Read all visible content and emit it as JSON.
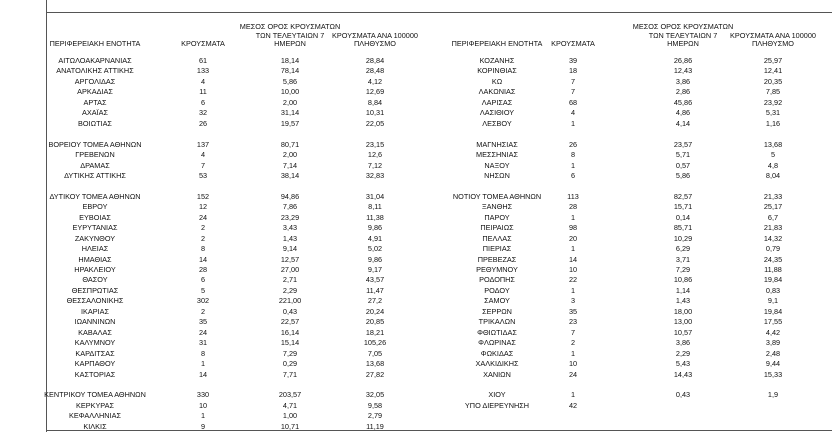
{
  "header": {
    "left": [
      [
        "ΠΕΡΙΦΕΡΕΙΑΚΗ ΕΝΟΤΗΤΑ"
      ],
      [
        "ΚΡΟΥΣΜΑΤΑ"
      ],
      [
        "ΜΕΣΟΣ ΟΡΟΣ ΚΡΟΥΣΜΑΤΩΝ",
        "ΤΩΝ ΤΕΛΕΥΤΑΙΩΝ 7",
        "ΗΜΕΡΩΝ"
      ],
      [
        "ΚΡΟΥΣΜΑΤΑ ΑΝΑ 100000",
        "ΠΛΗΘΥΣΜΟ"
      ]
    ],
    "right": [
      [
        "ΠΕΡΙΦΕΡΕΙΑΚΗ ΕΝΟΤΗΤΑ"
      ],
      [
        "ΚΡΟΥΣΜΑΤΑ"
      ],
      [
        "ΜΕΣΟΣ ΟΡΟΣ ΚΡΟΥΣΜΑΤΩΝ",
        "ΤΩΝ ΤΕΛΕΥΤΑΙΩΝ 7",
        "ΗΜΕΡΩΝ"
      ],
      [
        "ΚΡΟΥΣΜΑΤΑ ΑΝΑ 100000",
        "ΠΛΗΘΥΣΜΟ"
      ]
    ]
  },
  "groups": [
    {
      "left": [
        [
          "ΑΙΤΩΛΟΑΚΑΡΝΑΝΙΑΣ",
          "61",
          "18,14",
          "28,84"
        ],
        [
          "ΑΝΑΤΟΛΙΚΗΣ ΑΤΤΙΚΗΣ",
          "133",
          "78,14",
          "28,48"
        ],
        [
          "ΑΡΓΟΛΙΔΑΣ",
          "4",
          "5,86",
          "4,12"
        ],
        [
          "ΑΡΚΑΔΙΑΣ",
          "11",
          "10,00",
          "12,69"
        ],
        [
          "ΑΡΤΑΣ",
          "6",
          "2,00",
          "8,84"
        ],
        [
          "ΑΧΑΪΑΣ",
          "32",
          "31,14",
          "10,31"
        ],
        [
          "ΒΟΙΩΤΙΑΣ",
          "26",
          "19,57",
          "22,05"
        ]
      ],
      "right": [
        [
          "ΚΟΖΑΝΗΣ",
          "39",
          "26,86",
          "25,97"
        ],
        [
          "ΚΟΡΙΝΘΙΑΣ",
          "18",
          "12,43",
          "12,41"
        ],
        [
          "ΚΩ",
          "7",
          "3,86",
          "20,35"
        ],
        [
          "ΛΑΚΩΝΙΑΣ",
          "7",
          "2,86",
          "7,85"
        ],
        [
          "ΛΑΡΙΣΑΣ",
          "68",
          "45,86",
          "23,92"
        ],
        [
          "ΛΑΣΙΘΙΟΥ",
          "4",
          "4,86",
          "5,31"
        ],
        [
          "ΛΕΣΒΟΥ",
          "1",
          "4,14",
          "1,16"
        ]
      ]
    },
    {
      "left": [
        [
          "ΒΟΡΕΙΟΥ ΤΟΜΕΑ ΑΘΗΝΩΝ",
          "137",
          "80,71",
          "23,15"
        ],
        [
          "ΓΡΕΒΕΝΩΝ",
          "4",
          "2,00",
          "12,6"
        ],
        [
          "ΔΡΑΜΑΣ",
          "7",
          "7,14",
          "7,12"
        ],
        [
          "ΔΥΤΙΚΗΣ ΑΤΤΙΚΗΣ",
          "53",
          "38,14",
          "32,83"
        ]
      ],
      "right": [
        [
          "ΜΑΓΝΗΣΙΑΣ",
          "26",
          "23,57",
          "13,68"
        ],
        [
          "ΜΕΣΣΗΝΙΑΣ",
          "8",
          "5,71",
          "5"
        ],
        [
          "ΝΑΞΟΥ",
          "1",
          "0,57",
          "4,8"
        ],
        [
          "ΝΗΣΩΝ",
          "6",
          "5,86",
          "8,04"
        ]
      ]
    },
    {
      "left": [
        [
          "ΔΥΤΙΚΟΥ ΤΟΜΕΑ ΑΘΗΝΩΝ",
          "152",
          "94,86",
          "31,04"
        ],
        [
          "ΕΒΡΟΥ",
          "12",
          "7,86",
          "8,11"
        ],
        [
          "ΕΥΒΟΙΑΣ",
          "24",
          "23,29",
          "11,38"
        ],
        [
          "ΕΥΡΥΤΑΝΙΑΣ",
          "2",
          "3,43",
          "9,86"
        ],
        [
          "ΖΑΚΥΝΘΟΥ",
          "2",
          "1,43",
          "4,91"
        ],
        [
          "ΗΛΕΙΑΣ",
          "8",
          "9,14",
          "5,02"
        ],
        [
          "ΗΜΑΘΙΑΣ",
          "14",
          "12,57",
          "9,86"
        ],
        [
          "ΗΡΑΚΛΕΙΟΥ",
          "28",
          "27,00",
          "9,17"
        ],
        [
          "ΘΑΣΟΥ",
          "6",
          "2,71",
          "43,57"
        ],
        [
          "ΘΕΣΠΡΩΤΙΑΣ",
          "5",
          "2,29",
          "11,47"
        ],
        [
          "ΘΕΣΣΑΛΟΝΙΚΗΣ",
          "302",
          "221,00",
          "27,2"
        ],
        [
          "ΙΚΑΡΙΑΣ",
          "2",
          "0,43",
          "20,24"
        ],
        [
          "ΙΩΑΝΝΙΝΩΝ",
          "35",
          "22,57",
          "20,85"
        ],
        [
          "ΚΑΒΑΛΑΣ",
          "24",
          "16,14",
          "18,21"
        ],
        [
          "ΚΑΛΥΜΝΟΥ",
          "31",
          "15,14",
          "105,26"
        ],
        [
          "ΚΑΡΔΙΤΣΑΣ",
          "8",
          "7,29",
          "7,05"
        ],
        [
          "ΚΑΡΠΑΘΟΥ",
          "1",
          "0,29",
          "13,68"
        ],
        [
          "ΚΑΣΤΟΡΙΑΣ",
          "14",
          "7,71",
          "27,82"
        ]
      ],
      "right": [
        [
          "ΝΟΤΙΟΥ ΤΟΜΕΑ ΑΘΗΝΩΝ",
          "113",
          "82,57",
          "21,33"
        ],
        [
          "ΞΑΝΘΗΣ",
          "28",
          "15,71",
          "25,17"
        ],
        [
          "ΠΑΡΟΥ",
          "1",
          "0,14",
          "6,7"
        ],
        [
          "ΠΕΙΡΑΙΩΣ",
          "98",
          "85,71",
          "21,83"
        ],
        [
          "ΠΕΛΛΑΣ",
          "20",
          "10,29",
          "14,32"
        ],
        [
          "ΠΙΕΡΙΑΣ",
          "1",
          "6,29",
          "0,79"
        ],
        [
          "ΠΡΕΒΕΖΑΣ",
          "14",
          "3,71",
          "24,35"
        ],
        [
          "ΡΕΘΥΜΝΟΥ",
          "10",
          "7,29",
          "11,88"
        ],
        [
          "ΡΟΔΟΠΗΣ",
          "22",
          "10,86",
          "19,84"
        ],
        [
          "ΡΟΔΟΥ",
          "1",
          "1,14",
          "0,83"
        ],
        [
          "ΣΑΜΟΥ",
          "3",
          "1,43",
          "9,1"
        ],
        [
          "ΣΕΡΡΩΝ",
          "35",
          "18,00",
          "19,84"
        ],
        [
          "ΤΡΙΚΑΛΩΝ",
          "23",
          "13,00",
          "17,55"
        ],
        [
          "ΦΘΙΩΤΙΔΑΣ",
          "7",
          "10,57",
          "4,42"
        ],
        [
          "ΦΛΩΡΙΝΑΣ",
          "2",
          "3,86",
          "3,89"
        ],
        [
          "ΦΩΚΙΔΑΣ",
          "1",
          "2,29",
          "2,48"
        ],
        [
          "ΧΑΛΚΙΔΙΚΗΣ",
          "10",
          "5,43",
          "9,44"
        ],
        [
          "ΧΑΝΙΩΝ",
          "24",
          "14,43",
          "15,33"
        ]
      ]
    },
    {
      "left": [
        [
          "ΚΕΝΤΡΙΚΟΥ ΤΟΜΕΑ ΑΘΗΝΩΝ",
          "330",
          "203,57",
          "32,05"
        ],
        [
          "ΚΕΡΚΥΡΑΣ",
          "10",
          "4,71",
          "9,58"
        ],
        [
          "ΚΕΦΑΛΛΗΝΙΑΣ",
          "1",
          "1,00",
          "2,79"
        ],
        [
          "ΚΙΛΚΙΣ",
          "9",
          "10,71",
          "11,19"
        ]
      ],
      "right": [
        [
          "ΧΙΟΥ",
          "1",
          "0,43",
          "1,9"
        ],
        [
          "ΥΠΟ ΔΙΕΡΕΥΝΗΣΗ",
          "42"
        ]
      ]
    }
  ]
}
